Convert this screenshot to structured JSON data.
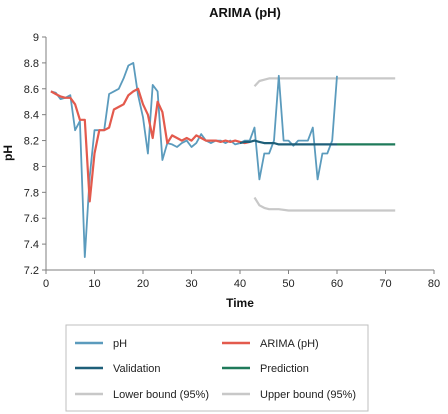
{
  "chart_data": {
    "type": "line",
    "title": "ARIMA (pH)",
    "xlabel": "Time",
    "ylabel": "pH",
    "xlim": [
      0,
      80
    ],
    "ylim": [
      7.2,
      9
    ],
    "xticks": [
      "0",
      "10",
      "20",
      "30",
      "40",
      "50",
      "60",
      "70",
      "80"
    ],
    "yticks": [
      "7.2",
      "7.4",
      "7.6",
      "7.8",
      "8",
      "8.2",
      "8.4",
      "8.6",
      "8.8",
      "9"
    ],
    "grid": false,
    "legend": "bottom",
    "series": [
      {
        "name": "pH",
        "color": "#5b9bbd",
        "x": [
          1,
          2,
          3,
          4,
          5,
          6,
          7,
          8,
          9,
          10,
          11,
          12,
          13,
          14,
          15,
          16,
          17,
          18,
          19,
          20,
          21,
          22,
          23,
          24,
          25,
          26,
          27,
          28,
          29,
          30,
          31,
          32,
          33,
          34,
          35,
          36,
          37,
          38,
          39,
          40,
          41,
          42,
          43,
          44,
          45,
          46,
          47,
          48,
          49,
          50,
          51,
          52,
          53,
          54,
          55,
          56,
          57,
          58,
          59,
          60
        ],
        "y": [
          8.58,
          8.57,
          8.52,
          8.53,
          8.55,
          8.28,
          8.35,
          7.3,
          7.92,
          8.28,
          8.28,
          8.28,
          8.56,
          8.58,
          8.6,
          8.68,
          8.78,
          8.8,
          8.55,
          8.38,
          8.1,
          8.63,
          8.58,
          8.05,
          8.18,
          8.17,
          8.15,
          8.18,
          8.2,
          8.15,
          8.18,
          8.25,
          8.2,
          8.18,
          8.2,
          8.2,
          8.18,
          8.2,
          8.17,
          8.18,
          8.2,
          8.2,
          8.3,
          7.9,
          8.1,
          8.1,
          8.2,
          8.7,
          8.2,
          8.2,
          8.16,
          8.2,
          8.2,
          8.2,
          8.3,
          7.9,
          8.1,
          8.1,
          8.2,
          8.7
        ]
      },
      {
        "name": "ARIMA (pH)",
        "color": "#e35a4d",
        "x": [
          1,
          2,
          3,
          4,
          5,
          6,
          7,
          8,
          9,
          10,
          11,
          12,
          13,
          14,
          15,
          16,
          17,
          18,
          19,
          20,
          21,
          22,
          23,
          24,
          25,
          26,
          27,
          28,
          29,
          30,
          31,
          32,
          33,
          34,
          35,
          36,
          37,
          38,
          39,
          40,
          41,
          42
        ],
        "y": [
          8.58,
          8.56,
          8.54,
          8.53,
          8.53,
          8.48,
          8.36,
          8.36,
          7.73,
          8.1,
          8.28,
          8.28,
          8.3,
          8.44,
          8.46,
          8.48,
          8.55,
          8.58,
          8.6,
          8.48,
          8.4,
          8.22,
          8.5,
          8.42,
          8.18,
          8.24,
          8.22,
          8.2,
          8.22,
          8.2,
          8.24,
          8.22,
          8.2,
          8.2,
          8.2,
          8.19,
          8.2,
          8.19,
          8.2,
          8.19,
          8.18,
          8.19
        ]
      },
      {
        "name": "Validation",
        "color": "#1e5f79",
        "x": [
          40,
          41,
          42,
          43,
          44,
          45,
          46,
          47,
          48,
          49,
          50,
          51,
          52,
          53,
          54,
          55,
          56,
          57,
          58,
          59,
          60
        ],
        "y": [
          8.18,
          8.19,
          8.19,
          8.2,
          8.19,
          8.18,
          8.18,
          8.18,
          8.17,
          8.17,
          8.17,
          8.17,
          8.17,
          8.17,
          8.17,
          8.17,
          8.17,
          8.17,
          8.17,
          8.17,
          8.17
        ]
      },
      {
        "name": "Prediction",
        "color": "#1f7a5a",
        "x": [
          60,
          62,
          64,
          66,
          68,
          70,
          72
        ],
        "y": [
          8.17,
          8.17,
          8.17,
          8.17,
          8.17,
          8.17,
          8.17
        ]
      },
      {
        "name": "Lower bound (95%)",
        "color": "#c8c8c8",
        "x": [
          43,
          44,
          45,
          46,
          48,
          50,
          55,
          60,
          65,
          70,
          72
        ],
        "y": [
          7.76,
          7.7,
          7.68,
          7.67,
          7.67,
          7.66,
          7.66,
          7.66,
          7.66,
          7.66,
          7.66
        ]
      },
      {
        "name": "Upper bound (95%)",
        "color": "#c8c8c8",
        "x": [
          43,
          44,
          45,
          46,
          48,
          50,
          55,
          60,
          65,
          70,
          72
        ],
        "y": [
          8.62,
          8.66,
          8.67,
          8.68,
          8.68,
          8.68,
          8.68,
          8.68,
          8.68,
          8.68,
          8.68
        ]
      }
    ]
  }
}
